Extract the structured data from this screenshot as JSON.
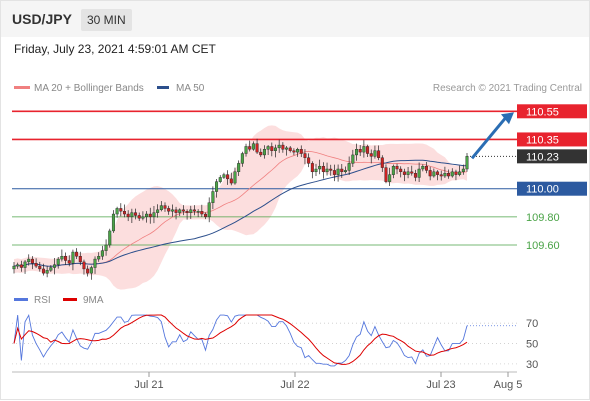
{
  "header": {
    "symbol": "USD/JPY",
    "timeframe": "30 MIN"
  },
  "timestamp": "Friday, July 23, 2021 4:59:01 AM CET",
  "legend": {
    "items": [
      {
        "label": "MA 20 + Bollinger Bands",
        "color": "#f08080"
      },
      {
        "label": "MA 50",
        "color": "#2c4f8c"
      }
    ],
    "credit": "Research © 2021 Trading Central"
  },
  "colors": {
    "resistance": "#e8232e",
    "support_blue": "#2c5aa0",
    "support_green": "#4aa347",
    "current_label": "#333333",
    "bollinger_fill": "#fcdada",
    "bollinger_line": "#f08080",
    "ma50": "#2c4f8c",
    "arrow": "#2a6db3",
    "candle_up": "#4aa347",
    "candle_down": "#cc2222",
    "rsi": "#5577dd",
    "rsi_ma": "#dd0000"
  },
  "chart_data": [
    {
      "type": "candlestick",
      "title": "USD/JPY 30 MIN",
      "ylim": [
        109.33,
        110.68
      ],
      "levels": [
        {
          "value": 110.55,
          "label": "110.55",
          "kind": "resistance"
        },
        {
          "value": 110.35,
          "label": "110.35",
          "kind": "resistance"
        },
        {
          "value": 110.23,
          "label": "110.23",
          "kind": "current"
        },
        {
          "value": 110.0,
          "label": "110.00",
          "kind": "support_blue"
        },
        {
          "value": 109.8,
          "label": "109.80",
          "kind": "support_green"
        },
        {
          "value": 109.6,
          "label": "109.60",
          "kind": "support_green"
        }
      ],
      "x_ticks": [
        "Jul 21",
        "Jul 22",
        "Jul 23",
        "Aug 5"
      ],
      "close_series": [
        109.45,
        109.46,
        109.44,
        109.48,
        109.5,
        109.47,
        109.45,
        109.43,
        109.4,
        109.42,
        109.44,
        109.46,
        109.5,
        109.52,
        109.49,
        109.47,
        109.55,
        109.52,
        109.48,
        109.43,
        109.4,
        109.44,
        109.5,
        109.52,
        109.56,
        109.6,
        109.7,
        109.82,
        109.86,
        109.84,
        109.82,
        109.8,
        109.83,
        109.81,
        109.79,
        109.8,
        109.82,
        109.8,
        109.83,
        109.85,
        109.88,
        109.86,
        109.84,
        109.85,
        109.83,
        109.85,
        109.84,
        109.83,
        109.85,
        109.84,
        109.84,
        109.82,
        109.8,
        109.9,
        109.98,
        110.05,
        110.08,
        110.1,
        110.07,
        110.04,
        110.12,
        110.18,
        110.25,
        110.3,
        110.28,
        110.32,
        110.26,
        110.24,
        110.28,
        110.3,
        110.27,
        110.29,
        110.31,
        110.28,
        110.29,
        110.27,
        110.26,
        110.28,
        110.25,
        110.22,
        110.18,
        110.12,
        110.14,
        110.16,
        110.12,
        110.14,
        110.13,
        110.1,
        110.14,
        110.12,
        110.13,
        110.18,
        110.24,
        110.28,
        110.26,
        110.3,
        110.25,
        110.23,
        110.27,
        110.22,
        110.15,
        110.05,
        110.1,
        110.16,
        110.14,
        110.12,
        110.1,
        110.12,
        110.11,
        110.08,
        110.14,
        110.16,
        110.13,
        110.09,
        110.12,
        110.1,
        110.09,
        110.11,
        110.09,
        110.12,
        110.1,
        110.12,
        110.14,
        110.23
      ],
      "series": [
        {
          "name": "MA 20 + Bollinger Bands",
          "kind": "band"
        },
        {
          "name": "MA 50",
          "kind": "line"
        }
      ],
      "projection": {
        "from": 110.23,
        "to": 110.55
      }
    },
    {
      "type": "line",
      "title": "RSI",
      "ylim": [
        25,
        80
      ],
      "y_ticks": [
        70,
        50,
        30
      ],
      "series": [
        {
          "name": "RSI"
        },
        {
          "name": "9MA"
        }
      ]
    }
  ]
}
